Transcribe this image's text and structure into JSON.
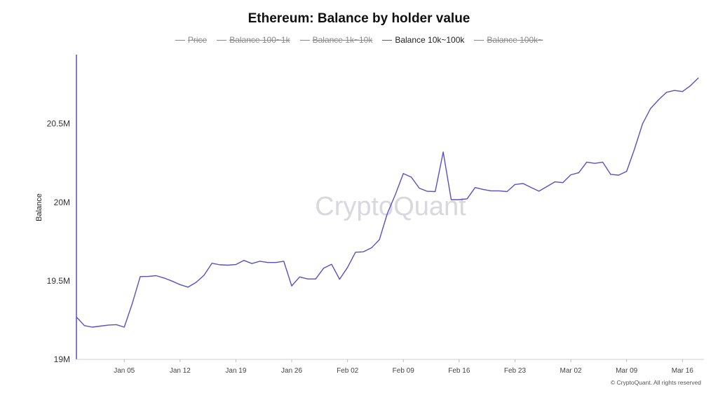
{
  "title": "Ethereum: Balance by holder value",
  "legend": [
    {
      "label": "Price",
      "active": false
    },
    {
      "label": "Balance 100~1k",
      "active": false
    },
    {
      "label": "Balance 1k~10k",
      "active": false
    },
    {
      "label": "Balance 10k~100k",
      "active": true
    },
    {
      "label": "Balance 100k~",
      "active": false
    }
  ],
  "watermark": "CryptoQuant",
  "copyright": "© CryptoQuant. All rights reserved",
  "colors": {
    "series": "#5b4fc4",
    "legend_inactive": "#8a8a8a",
    "axis": "#5b4fc4"
  },
  "chart_data": {
    "type": "line",
    "title": "Ethereum: Balance by holder value",
    "ylabel": "Balance",
    "xlabel": "",
    "ylim": [
      19000000,
      20940000
    ],
    "yticks": [
      19000000,
      19500000,
      20000000,
      20500000
    ],
    "ytick_labels": [
      "19M",
      "19.5M",
      "20M",
      "20.5M"
    ],
    "xtick_labels": [
      "Jan 05",
      "Jan 12",
      "Jan 19",
      "Jan 26",
      "Feb 02",
      "Feb 09",
      "Feb 16",
      "Feb 23",
      "Mar 02",
      "Mar 09",
      "Mar 16"
    ],
    "x_start": "Dec 30",
    "x_end": "Mar 18",
    "grid": false,
    "legend_position": "top",
    "series": [
      {
        "name": "Balance 10k~100k",
        "x": [
          "Dec 30",
          "Dec 31",
          "Jan 01",
          "Jan 02",
          "Jan 03",
          "Jan 04",
          "Jan 05",
          "Jan 06",
          "Jan 07",
          "Jan 08",
          "Jan 09",
          "Jan 10",
          "Jan 11",
          "Jan 12",
          "Jan 13",
          "Jan 14",
          "Jan 15",
          "Jan 16",
          "Jan 17",
          "Jan 18",
          "Jan 19",
          "Jan 20",
          "Jan 21",
          "Jan 22",
          "Jan 23",
          "Jan 24",
          "Jan 25",
          "Jan 26",
          "Jan 27",
          "Jan 28",
          "Jan 29",
          "Jan 30",
          "Jan 31",
          "Feb 01",
          "Feb 02",
          "Feb 03",
          "Feb 04",
          "Feb 05",
          "Feb 06",
          "Feb 07",
          "Feb 08",
          "Feb 09",
          "Feb 10",
          "Feb 11",
          "Feb 12",
          "Feb 13",
          "Feb 14",
          "Feb 15",
          "Feb 16",
          "Feb 17",
          "Feb 18",
          "Feb 19",
          "Feb 20",
          "Feb 21",
          "Feb 22",
          "Feb 23",
          "Feb 24",
          "Feb 25",
          "Feb 26",
          "Feb 27",
          "Feb 28",
          "Mar 01",
          "Mar 02",
          "Mar 03",
          "Mar 04",
          "Mar 05",
          "Mar 06",
          "Mar 07",
          "Mar 08",
          "Mar 09",
          "Mar 10",
          "Mar 11",
          "Mar 12",
          "Mar 13",
          "Mar 14",
          "Mar 15",
          "Mar 16",
          "Mar 17",
          "Mar 18"
        ],
        "values": [
          19270000,
          19215000,
          19205000,
          19212000,
          19218000,
          19221000,
          19205000,
          19355000,
          19527000,
          19528000,
          19533000,
          19518000,
          19498000,
          19476000,
          19460000,
          19490000,
          19535000,
          19612000,
          19602000,
          19600000,
          19604000,
          19630000,
          19610000,
          19625000,
          19617000,
          19617000,
          19625000,
          19468000,
          19525000,
          19512000,
          19512000,
          19580000,
          19605000,
          19510000,
          19585000,
          19682000,
          19685000,
          19710000,
          19762000,
          19930000,
          20050000,
          20183000,
          20160000,
          20090000,
          20070000,
          20068000,
          20320000,
          20017000,
          20017000,
          20022000,
          20094000,
          20082000,
          20073000,
          20073000,
          20068000,
          20113000,
          20120000,
          20095000,
          20071000,
          20100000,
          20130000,
          20125000,
          20175000,
          20188000,
          20256000,
          20248000,
          20256000,
          20178000,
          20173000,
          20197000,
          20340000,
          20500000,
          20597000,
          20652000,
          20700000,
          20712000,
          20705000,
          20742000,
          20792000
        ]
      }
    ]
  }
}
